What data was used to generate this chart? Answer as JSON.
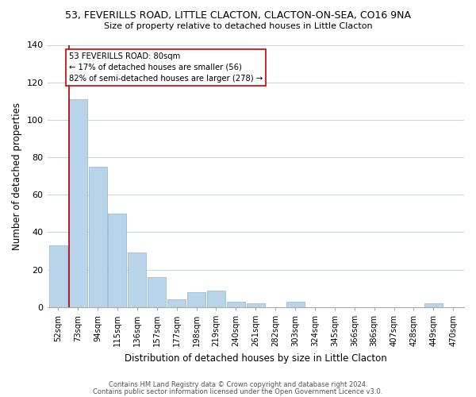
{
  "title": "53, FEVERILLS ROAD, LITTLE CLACTON, CLACTON-ON-SEA, CO16 9NA",
  "subtitle": "Size of property relative to detached houses in Little Clacton",
  "xlabel": "Distribution of detached houses by size in Little Clacton",
  "ylabel": "Number of detached properties",
  "categories": [
    "52sqm",
    "73sqm",
    "94sqm",
    "115sqm",
    "136sqm",
    "157sqm",
    "177sqm",
    "198sqm",
    "219sqm",
    "240sqm",
    "261sqm",
    "282sqm",
    "303sqm",
    "324sqm",
    "345sqm",
    "366sqm",
    "386sqm",
    "407sqm",
    "428sqm",
    "449sqm",
    "470sqm"
  ],
  "values": [
    33,
    111,
    75,
    50,
    29,
    16,
    4,
    8,
    9,
    3,
    2,
    0,
    3,
    0,
    0,
    0,
    0,
    0,
    0,
    2,
    0
  ],
  "bar_color": "#b8d4ea",
  "bar_edge_color": "#9bbdd4",
  "ylim": [
    0,
    140
  ],
  "yticks": [
    0,
    20,
    40,
    60,
    80,
    100,
    120,
    140
  ],
  "property_line_index": 1,
  "property_line_color": "#aa0000",
  "annotation_title": "53 FEVERILLS ROAD: 80sqm",
  "annotation_line1": "← 17% of detached houses are smaller (56)",
  "annotation_line2": "82% of semi-detached houses are larger (278) →",
  "annotation_box_color": "#ffffff",
  "annotation_box_edge_color": "#cc0000",
  "footnote1": "Contains HM Land Registry data © Crown copyright and database right 2024.",
  "footnote2": "Contains public sector information licensed under the Open Government Licence v3.0.",
  "background_color": "#ffffff",
  "grid_color": "#c8d4e4"
}
